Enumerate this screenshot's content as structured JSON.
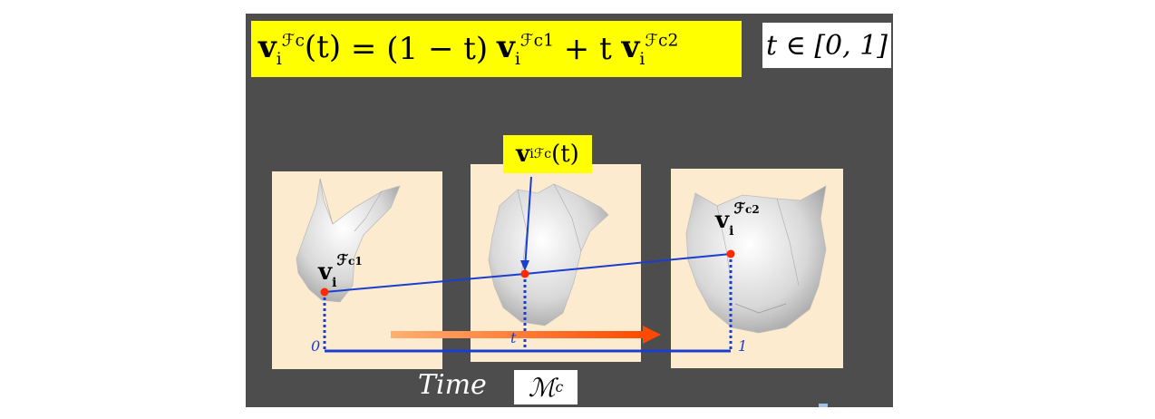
{
  "equation": {
    "lhs_var": "v",
    "lhs_sub": "i",
    "lhs_sup": "ℱ",
    "lhs_sup_c": "c",
    "lhs_arg": "(t)",
    "equals": " = ",
    "term1_coef": "(1 − t)",
    "term1_sup_c": "c1",
    "plus": " + t ",
    "term2_sup_c": "c2"
  },
  "range": {
    "text": "t ∈ [0, 1]"
  },
  "interp_label": {
    "var": "v",
    "sub": "i",
    "sup": "ℱ",
    "sup_c": "c",
    "arg": "(t)"
  },
  "vertex_labels": {
    "left": {
      "var": "v",
      "sub": "i",
      "sup": "ℱ",
      "sup_c": "c1"
    },
    "right": {
      "var": "v",
      "sub": "i",
      "sup": "ℱ",
      "sup_c": "c2"
    }
  },
  "timeline": {
    "start": "0",
    "middle": "t",
    "end": "1"
  },
  "time_label": "Time",
  "mc_label": {
    "main": "ℳ",
    "sub": "c"
  },
  "colors": {
    "slide_bg": "#4d4d4d",
    "highlight": "#ffff00",
    "panel_bg": "#fdebcf",
    "line_blue": "#1a3fd0",
    "point_red": "#ff2a00",
    "arrow_orange": "#ff6a00"
  },
  "icons": [
    "bunny-mesh-icon",
    "bunny-lion-blend-mesh-icon",
    "lion-mesh-icon"
  ]
}
